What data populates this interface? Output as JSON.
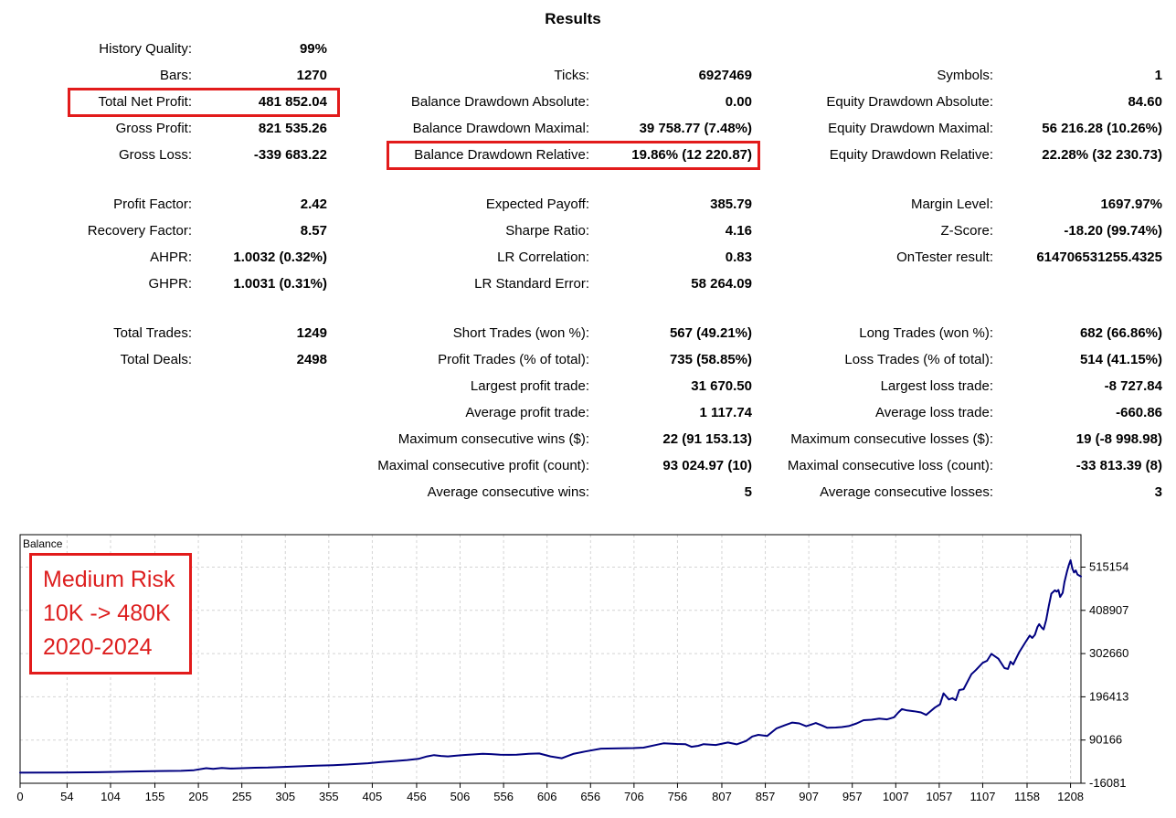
{
  "title": "Results",
  "accent_color": "#e21b1b",
  "stats": {
    "rows": [
      {
        "col": 1,
        "row": 0,
        "label": "History Quality:",
        "value": "99%"
      },
      {
        "col": 1,
        "row": 1,
        "label": "Bars:",
        "value": "1270"
      },
      {
        "col": 1,
        "row": 2,
        "label": "Total Net Profit:",
        "value": "481 852.04",
        "boxed": true
      },
      {
        "col": 1,
        "row": 3,
        "label": "Gross Profit:",
        "value": "821 535.26"
      },
      {
        "col": 1,
        "row": 4,
        "label": "Gross Loss:",
        "value": "-339 683.22"
      },
      {
        "col": 1,
        "row": 5,
        "label": "Profit Factor:",
        "value": "2.42"
      },
      {
        "col": 1,
        "row": 6,
        "label": "Recovery Factor:",
        "value": "8.57"
      },
      {
        "col": 1,
        "row": 7,
        "label": "AHPR:",
        "value": "1.0032 (0.32%)"
      },
      {
        "col": 1,
        "row": 8,
        "label": "GHPR:",
        "value": "1.0031 (0.31%)"
      },
      {
        "col": 1,
        "row": 9,
        "label": "Total Trades:",
        "value": "1249"
      },
      {
        "col": 1,
        "row": 10,
        "label": "Total Deals:",
        "value": "2498"
      },
      {
        "col": 2,
        "row": 1,
        "label": "Ticks:",
        "value": "6927469"
      },
      {
        "col": 2,
        "row": 2,
        "label": "Balance Drawdown Absolute:",
        "value": "0.00"
      },
      {
        "col": 2,
        "row": 3,
        "label": "Balance Drawdown Maximal:",
        "value": "39 758.77 (7.48%)"
      },
      {
        "col": 2,
        "row": 4,
        "label": "Balance Drawdown Relative:",
        "value": "19.86% (12 220.87)",
        "boxed": true
      },
      {
        "col": 2,
        "row": 5,
        "label": "Expected Payoff:",
        "value": "385.79"
      },
      {
        "col": 2,
        "row": 6,
        "label": "Sharpe Ratio:",
        "value": "4.16"
      },
      {
        "col": 2,
        "row": 7,
        "label": "LR Correlation:",
        "value": "0.83"
      },
      {
        "col": 2,
        "row": 8,
        "label": "LR Standard Error:",
        "value": "58 264.09"
      },
      {
        "col": 2,
        "row": 9,
        "label": "Short Trades (won %):",
        "value": "567 (49.21%)"
      },
      {
        "col": 2,
        "row": 10,
        "label": "Profit Trades (% of total):",
        "value": "735 (58.85%)"
      },
      {
        "col": 2,
        "row": 11,
        "label": "Largest profit trade:",
        "value": "31 670.50"
      },
      {
        "col": 2,
        "row": 12,
        "label": "Average profit trade:",
        "value": "1 117.74"
      },
      {
        "col": 2,
        "row": 13,
        "label": "Maximum consecutive wins ($):",
        "value": "22 (91 153.13)"
      },
      {
        "col": 2,
        "row": 14,
        "label": "Maximal consecutive profit (count):",
        "value": "93 024.97 (10)"
      },
      {
        "col": 2,
        "row": 15,
        "label": "Average consecutive wins:",
        "value": "5"
      },
      {
        "col": 3,
        "row": 1,
        "label": "Symbols:",
        "value": "1"
      },
      {
        "col": 3,
        "row": 2,
        "label": "Equity Drawdown Absolute:",
        "value": "84.60"
      },
      {
        "col": 3,
        "row": 3,
        "label": "Equity Drawdown Maximal:",
        "value": "56 216.28 (10.26%)"
      },
      {
        "col": 3,
        "row": 4,
        "label": "Equity Drawdown Relative:",
        "value": "22.28% (32 230.73)"
      },
      {
        "col": 3,
        "row": 5,
        "label": "Margin Level:",
        "value": "1697.97%"
      },
      {
        "col": 3,
        "row": 6,
        "label": "Z-Score:",
        "value": "-18.20 (99.74%)"
      },
      {
        "col": 3,
        "row": 7,
        "label": "OnTester result:",
        "value": "614706531255.4325"
      },
      {
        "col": 3,
        "row": 9,
        "label": "Long Trades (won %):",
        "value": "682 (66.86%)"
      },
      {
        "col": 3,
        "row": 10,
        "label": "Loss Trades (% of total):",
        "value": "514 (41.15%)"
      },
      {
        "col": 3,
        "row": 11,
        "label": "Largest loss trade:",
        "value": "-8 727.84"
      },
      {
        "col": 3,
        "row": 12,
        "label": "Average loss trade:",
        "value": "-660.86"
      },
      {
        "col": 3,
        "row": 13,
        "label": "Maximum consecutive losses ($):",
        "value": "19 (-8 998.98)"
      },
      {
        "col": 3,
        "row": 14,
        "label": "Maximal consecutive loss (count):",
        "value": "-33 813.39 (8)"
      },
      {
        "col": 3,
        "row": 15,
        "label": "Average consecutive losses:",
        "value": "3"
      }
    ]
  },
  "annotation": {
    "lines": [
      "Medium Risk",
      "10K -> 480K",
      "2020-2024"
    ],
    "color": "#dd1f1f"
  },
  "chart_data": {
    "type": "line",
    "title": "Balance",
    "legend_position": "top-left",
    "grid": "dashed",
    "xlim": [
      0,
      1220
    ],
    "ylim": [
      -16081,
      595000
    ],
    "x_ticks": [
      0,
      54,
      104,
      155,
      205,
      255,
      305,
      355,
      405,
      456,
      506,
      556,
      606,
      656,
      706,
      756,
      807,
      857,
      907,
      957,
      1007,
      1057,
      1107,
      1158,
      1208
    ],
    "y_ticks": [
      515154,
      408907,
      302660,
      196413,
      90166,
      -16081
    ],
    "series": [
      {
        "name": "Balance",
        "color": "#000080",
        "points": [
          [
            0,
            10000
          ],
          [
            50,
            10500
          ],
          [
            90,
            11000
          ],
          [
            130,
            13000
          ],
          [
            160,
            14000
          ],
          [
            185,
            14500
          ],
          [
            200,
            16000
          ],
          [
            214,
            21000
          ],
          [
            222,
            19500
          ],
          [
            232,
            21500
          ],
          [
            242,
            20000
          ],
          [
            255,
            21000
          ],
          [
            270,
            22000
          ],
          [
            285,
            22500
          ],
          [
            300,
            24000
          ],
          [
            320,
            25500
          ],
          [
            340,
            27000
          ],
          [
            360,
            28500
          ],
          [
            380,
            30500
          ],
          [
            400,
            33000
          ],
          [
            415,
            36000
          ],
          [
            430,
            38500
          ],
          [
            445,
            41000
          ],
          [
            458,
            44000
          ],
          [
            468,
            50000
          ],
          [
            476,
            53000
          ],
          [
            484,
            51000
          ],
          [
            492,
            50000
          ],
          [
            502,
            52000
          ],
          [
            512,
            53500
          ],
          [
            522,
            55000
          ],
          [
            532,
            56500
          ],
          [
            542,
            55500
          ],
          [
            552,
            54000
          ],
          [
            562,
            53800
          ],
          [
            571,
            54200
          ],
          [
            585,
            56500
          ],
          [
            597,
            57200
          ],
          [
            610,
            50000
          ],
          [
            623,
            45500
          ],
          [
            636,
            56000
          ],
          [
            650,
            62000
          ],
          [
            668,
            69000
          ],
          [
            690,
            70000
          ],
          [
            705,
            70500
          ],
          [
            717,
            71500
          ],
          [
            733,
            79000
          ],
          [
            740,
            82000
          ],
          [
            755,
            80500
          ],
          [
            765,
            80000
          ],
          [
            772,
            73500
          ],
          [
            780,
            76000
          ],
          [
            786,
            80000
          ],
          [
            800,
            78000
          ],
          [
            814,
            84000
          ],
          [
            824,
            79500
          ],
          [
            835,
            88000
          ],
          [
            842,
            99000
          ],
          [
            849,
            103000
          ],
          [
            859,
            100000
          ],
          [
            870,
            119000
          ],
          [
            880,
            127000
          ],
          [
            888,
            133000
          ],
          [
            896,
            131000
          ],
          [
            904,
            124000
          ],
          [
            915,
            132000
          ],
          [
            922,
            126000
          ],
          [
            928,
            120500
          ],
          [
            938,
            121000
          ],
          [
            945,
            122000
          ],
          [
            953,
            124500
          ],
          [
            962,
            131000
          ],
          [
            970,
            139000
          ],
          [
            979,
            140000
          ],
          [
            988,
            143000
          ],
          [
            997,
            141000
          ],
          [
            1005,
            146000
          ],
          [
            1010,
            158000
          ],
          [
            1014,
            166000
          ],
          [
            1020,
            163000
          ],
          [
            1028,
            161000
          ],
          [
            1036,
            158000
          ],
          [
            1042,
            152000
          ],
          [
            1052,
            170000
          ],
          [
            1058,
            178000
          ],
          [
            1062,
            205000
          ],
          [
            1068,
            190000
          ],
          [
            1072,
            193000
          ],
          [
            1076,
            188000
          ],
          [
            1080,
            213000
          ],
          [
            1085,
            215000
          ],
          [
            1094,
            252000
          ],
          [
            1099,
            262000
          ],
          [
            1107,
            280000
          ],
          [
            1112,
            285000
          ],
          [
            1117,
            302000
          ],
          [
            1125,
            290000
          ],
          [
            1132,
            267000
          ],
          [
            1136,
            265000
          ],
          [
            1139,
            283000
          ],
          [
            1142,
            276000
          ],
          [
            1149,
            306000
          ],
          [
            1156,
            330000
          ],
          [
            1161,
            347000
          ],
          [
            1164,
            341000
          ],
          [
            1167,
            349000
          ],
          [
            1170,
            368000
          ],
          [
            1172,
            375000
          ],
          [
            1175,
            366000
          ],
          [
            1177,
            362000
          ],
          [
            1180,
            385000
          ],
          [
            1183,
            420000
          ],
          [
            1186,
            450000
          ],
          [
            1190,
            458000
          ],
          [
            1192,
            455000
          ],
          [
            1194,
            459000
          ],
          [
            1196,
            442000
          ],
          [
            1199,
            452000
          ],
          [
            1201,
            478000
          ],
          [
            1204,
            505000
          ],
          [
            1206,
            520000
          ],
          [
            1208,
            532000
          ],
          [
            1210,
            512000
          ],
          [
            1212,
            502000
          ],
          [
            1214,
            507000
          ],
          [
            1216,
            497000
          ],
          [
            1220,
            492000
          ]
        ]
      }
    ]
  }
}
